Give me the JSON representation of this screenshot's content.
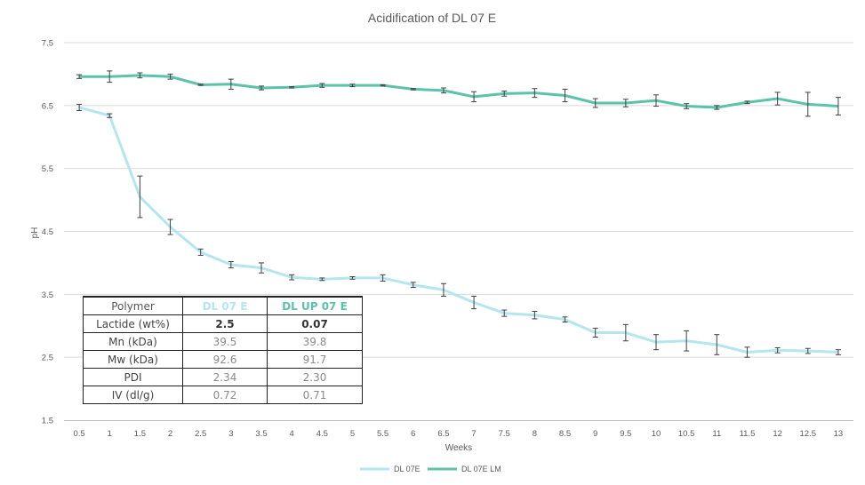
{
  "chart_data": {
    "type": "line",
    "title": "Acidification of DL 07 E",
    "xlabel": "Weeks",
    "ylabel": "pH",
    "ylim": [
      1.5,
      7.5
    ],
    "yticks": [
      "1.5",
      "2.5",
      "3.5",
      "4.5",
      "5.5",
      "6.5",
      "7.5"
    ],
    "categories": [
      "0.5",
      "1",
      "1.5",
      "2",
      "2.5",
      "3",
      "3.5",
      "4",
      "4.5",
      "5",
      "5.5",
      "6",
      "6.5",
      "7",
      "7.5",
      "8",
      "8.5",
      "9",
      "9.5",
      "10",
      "10.5",
      "11",
      "11.5",
      "12",
      "12.5",
      "13"
    ],
    "grid": "horizontal",
    "legend_position": "bottom",
    "series": [
      {
        "name": "DL 07E",
        "color": "#b3e6ee",
        "values": [
          6.47,
          6.34,
          5.05,
          4.57,
          4.17,
          3.97,
          3.92,
          3.77,
          3.74,
          3.76,
          3.76,
          3.65,
          3.57,
          3.37,
          3.2,
          3.17,
          3.1,
          2.89,
          2.89,
          2.74,
          2.76,
          2.7,
          2.58,
          2.61,
          2.6,
          2.58
        ],
        "errors": [
          0.05,
          0.03,
          0.33,
          0.12,
          0.05,
          0.05,
          0.08,
          0.04,
          0.02,
          0.02,
          0.05,
          0.04,
          0.1,
          0.1,
          0.05,
          0.06,
          0.04,
          0.07,
          0.13,
          0.12,
          0.16,
          0.16,
          0.08,
          0.04,
          0.04,
          0.04
        ]
      },
      {
        "name": "DL 07E LM",
        "color": "#5cc2a9",
        "values": [
          6.96,
          6.96,
          6.98,
          6.96,
          6.83,
          6.84,
          6.78,
          6.79,
          6.82,
          6.82,
          6.82,
          6.76,
          6.74,
          6.64,
          6.69,
          6.7,
          6.66,
          6.54,
          6.54,
          6.58,
          6.49,
          6.47,
          6.55,
          6.61,
          6.52,
          6.49
        ],
        "errors": [
          0.03,
          0.09,
          0.04,
          0.04,
          0.01,
          0.08,
          0.03,
          0.01,
          0.03,
          0.02,
          0.01,
          0.01,
          0.04,
          0.08,
          0.04,
          0.07,
          0.1,
          0.07,
          0.06,
          0.09,
          0.04,
          0.03,
          0.02,
          0.1,
          0.19,
          0.14
        ]
      }
    ]
  },
  "inset_table": {
    "headers": [
      "Polymer",
      "DL 07 E",
      "DL UP 07 E"
    ],
    "header_colors": [
      "#555555",
      "#b3e6ee",
      "#5cc2a9"
    ],
    "rows": [
      {
        "label": "Lactide (wt%)",
        "a": "2.5",
        "b": "0.07"
      },
      {
        "label": "Mn (kDa)",
        "a": "39.5",
        "b": "39.8"
      },
      {
        "label": "Mw (kDa)",
        "a": "92.6",
        "b": "91.7"
      },
      {
        "label": "PDI",
        "a": "2.34",
        "b": "2.30"
      },
      {
        "label": "IV (dl/g)",
        "a": "0.72",
        "b": "0.71"
      }
    ]
  }
}
